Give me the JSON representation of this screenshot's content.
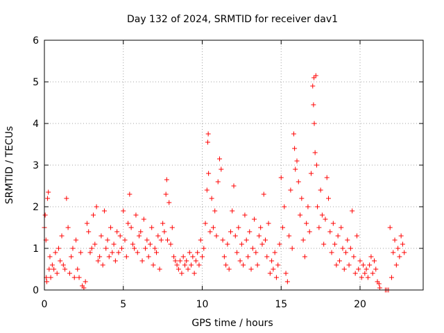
{
  "chart_data": {
    "type": "scatter",
    "title": "Day 132 of 2024, SRMTID for receiver dav1",
    "xlabel": "GPS time / hours",
    "ylabel": "SRMTID / TECUs",
    "xlim": [
      0,
      24
    ],
    "ylim": [
      0,
      6
    ],
    "xticks": [
      0,
      5,
      10,
      15,
      20
    ],
    "yticks": [
      0,
      1,
      2,
      3,
      4,
      5,
      6
    ],
    "grid": true,
    "marker": "plus",
    "color": "#ff0000",
    "series": [
      {
        "name": "SRMTID",
        "points": [
          [
            0.0,
            1.5
          ],
          [
            0.05,
            1.8
          ],
          [
            0.1,
            1.2
          ],
          [
            0.12,
            0.3
          ],
          [
            0.15,
            0.2
          ],
          [
            0.2,
            2.2
          ],
          [
            0.25,
            2.35
          ],
          [
            0.3,
            0.5
          ],
          [
            0.35,
            0.8
          ],
          [
            0.4,
            0.3
          ],
          [
            0.5,
            0.6
          ],
          [
            0.6,
            0.5
          ],
          [
            0.7,
            0.9
          ],
          [
            0.8,
            0.4
          ],
          [
            0.9,
            1.0
          ],
          [
            1.0,
            0.7
          ],
          [
            1.1,
            1.3
          ],
          [
            1.2,
            0.6
          ],
          [
            1.3,
            0.5
          ],
          [
            1.4,
            2.2
          ],
          [
            1.5,
            1.5
          ],
          [
            1.6,
            0.4
          ],
          [
            1.7,
            0.8
          ],
          [
            1.8,
            1.0
          ],
          [
            1.9,
            0.3
          ],
          [
            2.0,
            1.2
          ],
          [
            2.1,
            0.5
          ],
          [
            2.2,
            0.3
          ],
          [
            2.3,
            0.9
          ],
          [
            2.4,
            0.1
          ],
          [
            2.5,
            0.05
          ],
          [
            2.6,
            0.2
          ],
          [
            2.7,
            1.6
          ],
          [
            2.8,
            1.4
          ],
          [
            2.9,
            0.9
          ],
          [
            3.0,
            1.0
          ],
          [
            3.1,
            1.8
          ],
          [
            3.2,
            1.1
          ],
          [
            3.3,
            2.0
          ],
          [
            3.4,
            0.7
          ],
          [
            3.5,
            0.8
          ],
          [
            3.6,
            1.3
          ],
          [
            3.7,
            0.6
          ],
          [
            3.8,
            1.9
          ],
          [
            3.9,
            1.0
          ],
          [
            4.0,
            1.2
          ],
          [
            4.1,
            0.8
          ],
          [
            4.2,
            1.5
          ],
          [
            4.3,
            0.9
          ],
          [
            4.4,
            1.1
          ],
          [
            4.5,
            0.7
          ],
          [
            4.6,
            1.4
          ],
          [
            4.7,
            0.9
          ],
          [
            4.8,
            1.3
          ],
          [
            4.9,
            1.0
          ],
          [
            5.0,
            1.9
          ],
          [
            5.1,
            1.2
          ],
          [
            5.2,
            0.8
          ],
          [
            5.3,
            1.6
          ],
          [
            5.4,
            2.3
          ],
          [
            5.5,
            1.5
          ],
          [
            5.6,
            1.1
          ],
          [
            5.7,
            1.0
          ],
          [
            5.8,
            1.8
          ],
          [
            5.9,
            0.9
          ],
          [
            6.0,
            1.3
          ],
          [
            6.1,
            1.4
          ],
          [
            6.2,
            0.7
          ],
          [
            6.3,
            1.7
          ],
          [
            6.4,
            1.0
          ],
          [
            6.5,
            1.2
          ],
          [
            6.6,
            0.8
          ],
          [
            6.7,
            1.1
          ],
          [
            6.8,
            1.5
          ],
          [
            6.9,
            0.6
          ],
          [
            7.0,
            1.0
          ],
          [
            7.1,
            0.9
          ],
          [
            7.2,
            1.3
          ],
          [
            7.3,
            0.5
          ],
          [
            7.4,
            1.2
          ],
          [
            7.5,
            1.6
          ],
          [
            7.6,
            1.4
          ],
          [
            7.7,
            2.3
          ],
          [
            7.75,
            2.65
          ],
          [
            7.8,
            1.2
          ],
          [
            7.9,
            2.1
          ],
          [
            8.0,
            1.1
          ],
          [
            8.1,
            1.5
          ],
          [
            8.2,
            0.8
          ],
          [
            8.3,
            0.7
          ],
          [
            8.4,
            0.6
          ],
          [
            8.5,
            0.5
          ],
          [
            8.6,
            0.7
          ],
          [
            8.7,
            0.4
          ],
          [
            8.8,
            0.8
          ],
          [
            8.9,
            0.6
          ],
          [
            9.0,
            0.7
          ],
          [
            9.1,
            0.5
          ],
          [
            9.2,
            0.9
          ],
          [
            9.3,
            0.6
          ],
          [
            9.4,
            0.8
          ],
          [
            9.5,
            0.4
          ],
          [
            9.6,
            0.7
          ],
          [
            9.7,
            0.9
          ],
          [
            9.8,
            0.6
          ],
          [
            9.9,
            1.2
          ],
          [
            10.0,
            0.8
          ],
          [
            10.1,
            1.0
          ],
          [
            10.2,
            1.6
          ],
          [
            10.3,
            2.4
          ],
          [
            10.35,
            3.55
          ],
          [
            10.38,
            3.75
          ],
          [
            10.4,
            2.8
          ],
          [
            10.5,
            1.4
          ],
          [
            10.6,
            2.2
          ],
          [
            10.7,
            1.5
          ],
          [
            10.8,
            1.9
          ],
          [
            10.9,
            1.3
          ],
          [
            11.0,
            2.6
          ],
          [
            11.1,
            3.15
          ],
          [
            11.2,
            2.9
          ],
          [
            11.3,
            1.2
          ],
          [
            11.4,
            0.8
          ],
          [
            11.5,
            0.6
          ],
          [
            11.6,
            1.1
          ],
          [
            11.7,
            0.5
          ],
          [
            11.8,
            1.4
          ],
          [
            11.9,
            1.9
          ],
          [
            12.0,
            2.5
          ],
          [
            12.1,
            1.3
          ],
          [
            12.2,
            0.9
          ],
          [
            12.3,
            1.5
          ],
          [
            12.4,
            0.7
          ],
          [
            12.5,
            1.1
          ],
          [
            12.6,
            0.6
          ],
          [
            12.7,
            1.8
          ],
          [
            12.8,
            1.2
          ],
          [
            12.9,
            0.8
          ],
          [
            13.0,
            1.4
          ],
          [
            13.1,
            0.5
          ],
          [
            13.2,
            1.0
          ],
          [
            13.3,
            1.7
          ],
          [
            13.4,
            0.9
          ],
          [
            13.5,
            0.6
          ],
          [
            13.6,
            1.3
          ],
          [
            13.7,
            1.5
          ],
          [
            13.8,
            1.1
          ],
          [
            13.9,
            2.3
          ],
          [
            14.0,
            1.2
          ],
          [
            14.1,
            0.8
          ],
          [
            14.2,
            1.6
          ],
          [
            14.3,
            0.4
          ],
          [
            14.4,
            0.7
          ],
          [
            14.5,
            0.5
          ],
          [
            14.6,
            0.9
          ],
          [
            14.7,
            0.3
          ],
          [
            14.8,
            0.6
          ],
          [
            14.9,
            1.1
          ],
          [
            15.0,
            2.7
          ],
          [
            15.1,
            1.5
          ],
          [
            15.2,
            2.0
          ],
          [
            15.3,
            0.4
          ],
          [
            15.4,
            0.2
          ],
          [
            15.5,
            1.3
          ],
          [
            15.6,
            2.4
          ],
          [
            15.7,
            1.0
          ],
          [
            15.8,
            3.75
          ],
          [
            15.85,
            3.4
          ],
          [
            15.9,
            2.9
          ],
          [
            16.0,
            3.1
          ],
          [
            16.1,
            2.6
          ],
          [
            16.2,
            1.8
          ],
          [
            16.3,
            2.2
          ],
          [
            16.4,
            1.2
          ],
          [
            16.5,
            0.8
          ],
          [
            16.6,
            1.6
          ],
          [
            16.7,
            2.0
          ],
          [
            16.8,
            1.4
          ],
          [
            16.9,
            2.8
          ],
          [
            17.0,
            4.9
          ],
          [
            17.05,
            4.45
          ],
          [
            17.08,
            5.1
          ],
          [
            17.1,
            4.0
          ],
          [
            17.15,
            3.3
          ],
          [
            17.2,
            5.15
          ],
          [
            17.25,
            3.0
          ],
          [
            17.3,
            2.0
          ],
          [
            17.4,
            1.5
          ],
          [
            17.5,
            2.4
          ],
          [
            17.6,
            1.8
          ],
          [
            17.7,
            1.1
          ],
          [
            17.8,
            1.7
          ],
          [
            17.9,
            2.7
          ],
          [
            18.0,
            2.2
          ],
          [
            18.1,
            1.4
          ],
          [
            18.2,
            0.9
          ],
          [
            18.3,
            1.6
          ],
          [
            18.4,
            1.1
          ],
          [
            18.5,
            0.6
          ],
          [
            18.6,
            1.3
          ],
          [
            18.7,
            0.7
          ],
          [
            18.8,
            1.5
          ],
          [
            18.9,
            1.0
          ],
          [
            19.0,
            0.5
          ],
          [
            19.1,
            0.9
          ],
          [
            19.2,
            1.2
          ],
          [
            19.3,
            0.6
          ],
          [
            19.4,
            1.0
          ],
          [
            19.5,
            1.9
          ],
          [
            19.6,
            0.8
          ],
          [
            19.7,
            0.4
          ],
          [
            19.8,
            1.3
          ],
          [
            19.9,
            0.5
          ],
          [
            20.0,
            0.7
          ],
          [
            20.1,
            0.3
          ],
          [
            20.2,
            0.6
          ],
          [
            20.3,
            0.4
          ],
          [
            20.4,
            0.5
          ],
          [
            20.5,
            0.3
          ],
          [
            20.6,
            0.6
          ],
          [
            20.7,
            0.8
          ],
          [
            20.8,
            0.4
          ],
          [
            20.9,
            0.7
          ],
          [
            21.0,
            0.5
          ],
          [
            21.1,
            0.2
          ],
          [
            21.2,
            0.15
          ],
          [
            21.25,
            0.05
          ],
          [
            21.6,
            0.0
          ],
          [
            21.7,
            0.0
          ],
          [
            21.8,
            0.0
          ],
          [
            21.9,
            1.5
          ],
          [
            22.0,
            0.3
          ],
          [
            22.1,
            0.9
          ],
          [
            22.2,
            1.2
          ],
          [
            22.3,
            0.6
          ],
          [
            22.4,
            1.0
          ],
          [
            22.5,
            0.8
          ],
          [
            22.6,
            1.3
          ],
          [
            22.7,
            1.1
          ],
          [
            22.8,
            0.9
          ]
        ]
      }
    ]
  }
}
